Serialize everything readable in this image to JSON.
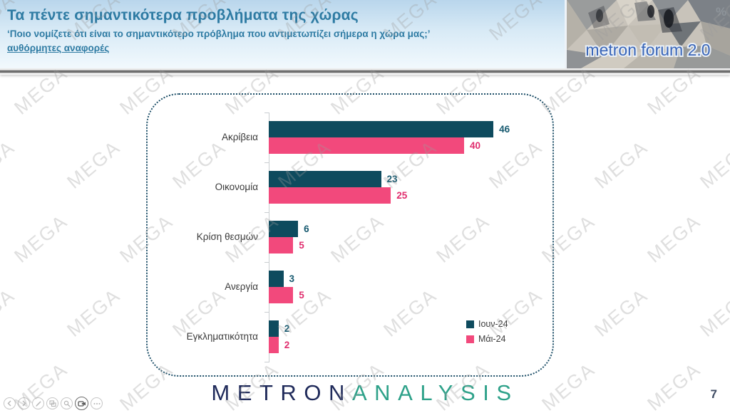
{
  "header": {
    "title": "Τα πέντε σημαντικότερα προβλήματα της χώρας",
    "subtitle": "‘Ποιο νομίζετε ότι είναι το σημαντικότερο πρόβλημα που αντιμετωπίζει σήμερα η χώρα μας;’",
    "note": "αυθόρμητες αναφορές",
    "logo": {
      "text": "metron forum 2.0",
      "percent_sign": "%"
    }
  },
  "chart_data": {
    "type": "bar",
    "orientation": "horizontal",
    "title": "Τα πέντε σημαντικότερα προβλήματα της χώρας",
    "categories": [
      "Ακρίβεια",
      "Οικονομία",
      "Κρίση θεσμών",
      "Ανεργία",
      "Εγκληματικότητα"
    ],
    "series": [
      {
        "name": "Ιουν-24",
        "color": "#0e4b5e",
        "label_color": "#175a70",
        "values": [
          46,
          23,
          6,
          3,
          2
        ]
      },
      {
        "name": "Μάι-24",
        "color": "#f2497c",
        "label_color": "#e02e6e",
        "values": [
          40,
          25,
          5,
          5,
          2
        ]
      }
    ],
    "xlim": [
      0,
      50
    ],
    "grid": false,
    "legend_position": "bottom-right",
    "value_labels": true
  },
  "footer": {
    "brand_primary": "METRON",
    "brand_secondary": "ANALYSIS",
    "page_number": "7"
  },
  "toolbar": {
    "items": [
      "previous-slide",
      "next-slide",
      "pen",
      "all-slides",
      "zoom",
      "camera",
      "more-options"
    ]
  },
  "watermark": {
    "text": "MEGA"
  }
}
